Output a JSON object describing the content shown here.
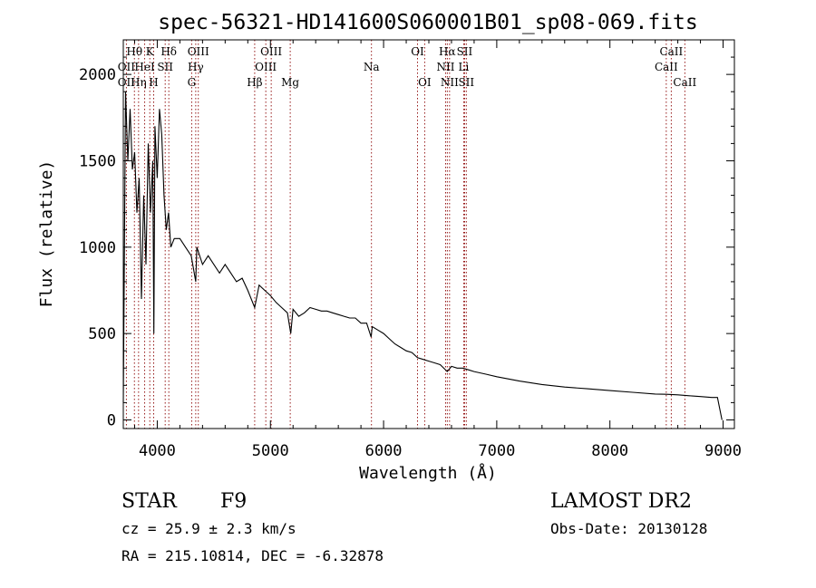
{
  "chart_data": {
    "type": "line",
    "title": "spec-56321-HD141600S060001B01_sp08-069.fits",
    "xlabel": "Wavelength (Å)",
    "ylabel": "Flux (relative)",
    "xlim": [
      3700,
      9100
    ],
    "ylim": [
      -50,
      2200
    ],
    "x_ticks": [
      4000,
      5000,
      6000,
      7000,
      8000,
      9000
    ],
    "y_ticks": [
      0,
      500,
      1000,
      1500,
      2000
    ],
    "grid": false,
    "series": [
      {
        "x": [
          3700,
          3720,
          3740,
          3760,
          3780,
          3800,
          3820,
          3840,
          3860,
          3880,
          3900,
          3920,
          3940,
          3960,
          3970,
          3980,
          4000,
          4020,
          4040,
          4060,
          4080,
          4100,
          4120,
          4150,
          4200,
          4250,
          4300,
          4340,
          4350,
          4400,
          4450,
          4500,
          4550,
          4600,
          4650,
          4700,
          4750,
          4800,
          4861,
          4900,
          4950,
          5000,
          5050,
          5100,
          5150,
          5180,
          5200,
          5250,
          5300,
          5350,
          5400,
          5450,
          5500,
          5550,
          5600,
          5650,
          5700,
          5750,
          5800,
          5850,
          5890,
          5900,
          5950,
          6000,
          6050,
          6100,
          6150,
          6200,
          6250,
          6300,
          6350,
          6400,
          6450,
          6500,
          6563,
          6600,
          6650,
          6700,
          6750,
          6800,
          6900,
          7000,
          7200,
          7400,
          7600,
          7800,
          8000,
          8200,
          8400,
          8500,
          8600,
          8700,
          8800,
          8900,
          8950,
          8990
        ],
        "y": [
          100,
          1900,
          1500,
          1800,
          1450,
          1550,
          1200,
          1400,
          700,
          1300,
          900,
          1600,
          1200,
          1500,
          500,
          1700,
          1400,
          1800,
          1650,
          1300,
          1100,
          1200,
          1000,
          1050,
          1050,
          1000,
          950,
          800,
          1000,
          900,
          950,
          900,
          850,
          900,
          850,
          800,
          820,
          750,
          650,
          780,
          750,
          720,
          680,
          650,
          620,
          500,
          640,
          600,
          620,
          650,
          640,
          630,
          630,
          620,
          610,
          600,
          590,
          590,
          560,
          560,
          480,
          540,
          520,
          500,
          470,
          440,
          420,
          400,
          390,
          360,
          350,
          340,
          330,
          320,
          280,
          310,
          300,
          300,
          290,
          280,
          265,
          250,
          225,
          205,
          190,
          180,
          170,
          160,
          150,
          148,
          145,
          140,
          135,
          130,
          130,
          0
        ]
      }
    ],
    "line_labels": [
      {
        "name": "Hθ",
        "x": 3798,
        "row": 1
      },
      {
        "name": "OII",
        "x": 3727,
        "row": 2
      },
      {
        "name": "OII",
        "x": 3727,
        "row": 3
      },
      {
        "name": "K",
        "x": 3934,
        "row": 1
      },
      {
        "name": "HeI",
        "x": 3889,
        "row": 2
      },
      {
        "name": "Hη",
        "x": 3835,
        "row": 3
      },
      {
        "name": "Hδ",
        "x": 4102,
        "row": 1
      },
      {
        "name": "SII",
        "x": 4070,
        "row": 2
      },
      {
        "name": "H",
        "x": 3968,
        "row": 3
      },
      {
        "name": "OIII",
        "x": 4363,
        "row": 1
      },
      {
        "name": "Hγ",
        "x": 4340,
        "row": 2
      },
      {
        "name": "G",
        "x": 4304,
        "row": 3
      },
      {
        "name": "OIII",
        "x": 5007,
        "row": 1
      },
      {
        "name": "OIII",
        "x": 4959,
        "row": 2
      },
      {
        "name": "Hβ",
        "x": 4861,
        "row": 3
      },
      {
        "name": "Mg",
        "x": 5175,
        "row": 3
      },
      {
        "name": "Na",
        "x": 5893,
        "row": 2
      },
      {
        "name": "OI",
        "x": 6300,
        "row": 1
      },
      {
        "name": "OI",
        "x": 6363,
        "row": 3
      },
      {
        "name": "Hα",
        "x": 6563,
        "row": 1
      },
      {
        "name": "SII",
        "x": 6716,
        "row": 1
      },
      {
        "name": "NII",
        "x": 6548,
        "row": 2
      },
      {
        "name": "Li",
        "x": 6708,
        "row": 2
      },
      {
        "name": "NII",
        "x": 6583,
        "row": 3
      },
      {
        "name": "SII",
        "x": 6731,
        "row": 3
      },
      {
        "name": "CaII",
        "x": 8542,
        "row": 1
      },
      {
        "name": "CaII",
        "x": 8498,
        "row": 2
      },
      {
        "name": "CaII",
        "x": 8662,
        "row": 3
      }
    ]
  },
  "info": {
    "class": "STAR",
    "subclass": "F9",
    "survey": "LAMOST DR2",
    "cz": "cz = 25.9 ± 2.3 km/s",
    "obs_date": "Obs-Date: 20130128",
    "radec": "RA = 215.10814, DEC =  -6.32878"
  }
}
